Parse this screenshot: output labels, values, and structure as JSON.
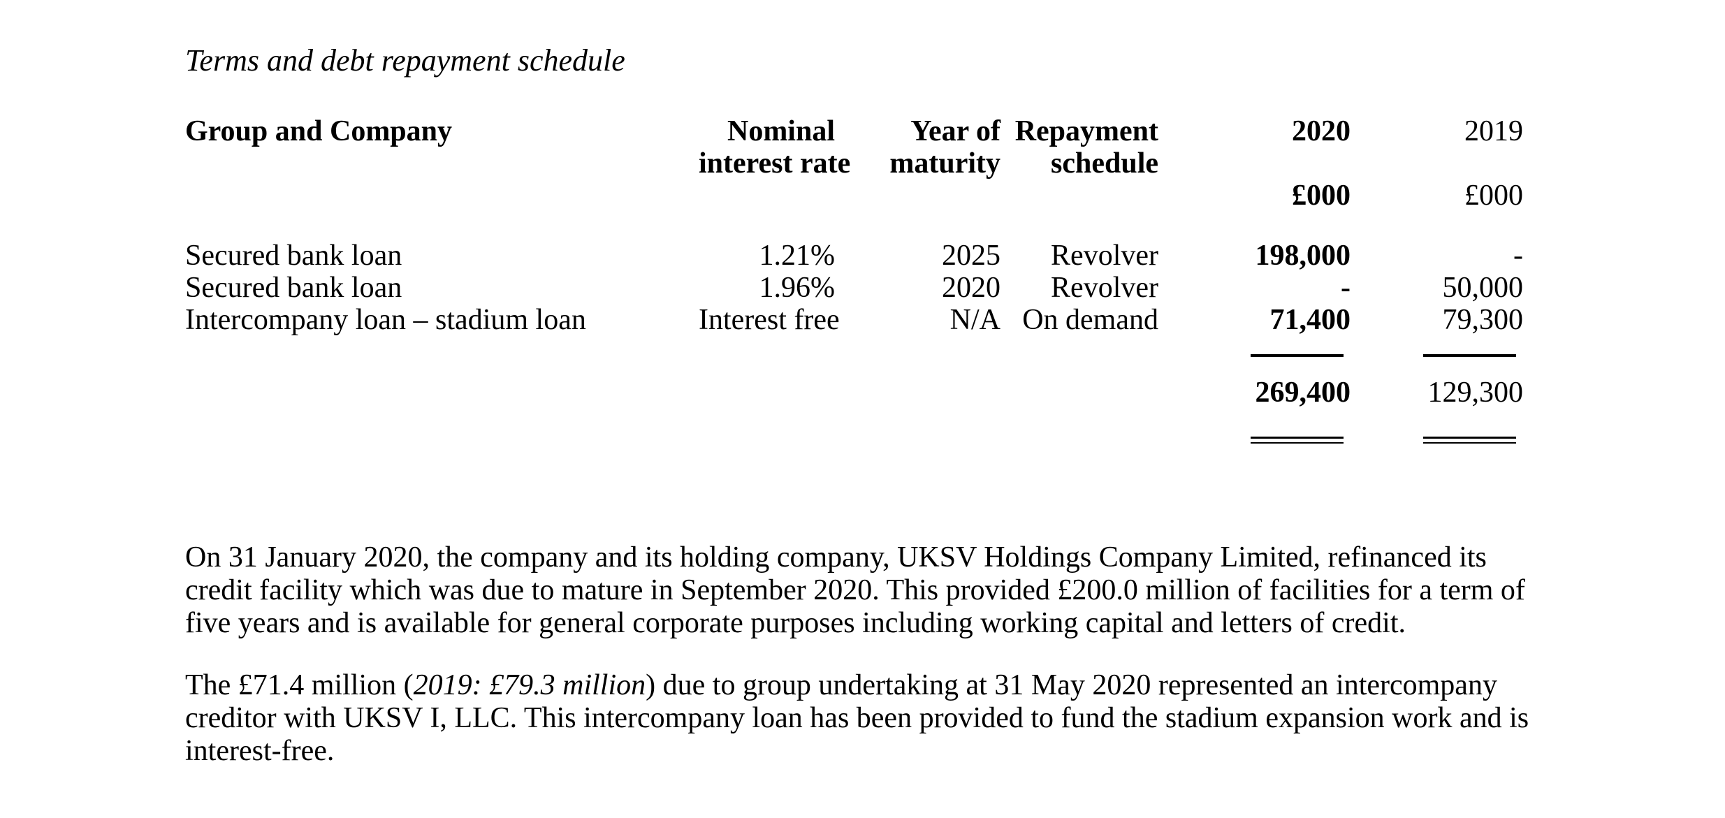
{
  "document": {
    "title": "Terms and debt repayment schedule",
    "table": {
      "header": {
        "group_company": "Group and Company",
        "nominal": [
          "Nominal",
          "interest rate"
        ],
        "year": [
          "Year of",
          "maturity"
        ],
        "repayment": [
          "Repayment",
          "schedule"
        ],
        "col_2020": "2020",
        "col_2019": "2019",
        "units_2020": "£000",
        "units_2019": "£000"
      },
      "rows": [
        {
          "name": "Secured bank loan",
          "rate": "1.21%",
          "maturity": "2025",
          "repayment": "Revolver",
          "y2020": "198,000",
          "y2019": "-"
        },
        {
          "name": "Secured bank loan",
          "rate": "1.96%",
          "maturity": "2020",
          "repayment": "Revolver",
          "y2020": "-",
          "y2019": "50,000"
        },
        {
          "name": "Intercompany loan – stadium loan",
          "rate": "Interest free",
          "maturity": "N/A",
          "repayment": "On demand",
          "y2020": "71,400",
          "y2019": "79,300"
        }
      ],
      "totals": {
        "y2020": "269,400",
        "y2019": "129,300"
      }
    },
    "paragraphs": {
      "p1": "On 31 January 2020, the company and its holding company, UKSV Holdings Company Limited, refinanced its credit facility which was due to mature in September 2020. This provided £200.0 million of facilities for a term of five years and is available for general corporate purposes including working capital and letters of credit.",
      "p2_prefix": "The £71.4 million (",
      "p2_italic": "2019: £79.3 million",
      "p2_suffix": ") due to group undertaking at 31 May 2020 represented an intercompany creditor with UKSV I, LLC. This intercompany loan has been provided to fund the stadium expansion work and is interest-free."
    }
  }
}
